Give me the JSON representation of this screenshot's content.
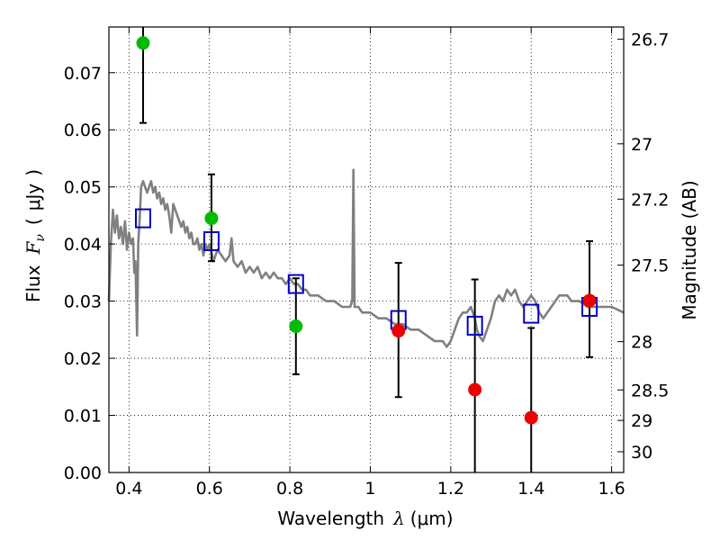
{
  "chart_data": {
    "type": "scatter",
    "title": "",
    "xlabel": {
      "text": "Wavelength",
      "symbol": "λ",
      "unit": "(μm)"
    },
    "ylabel": {
      "text": "Flux",
      "symbol": "F",
      "subscript": "ν",
      "unit_open": "(",
      "unit": "μJy",
      "unit_close": ")"
    },
    "y2label": "Magnitude (AB)",
    "xlim": [
      0.35,
      1.63
    ],
    "ylim": [
      0.0,
      0.078
    ],
    "grid": true,
    "x_ticks": [
      {
        "value": 0.4,
        "label": "0.4"
      },
      {
        "value": 0.6,
        "label": "0.6"
      },
      {
        "value": 0.8,
        "label": "0.8"
      },
      {
        "value": 1.0,
        "label": "1"
      },
      {
        "value": 1.2,
        "label": "1.2"
      },
      {
        "value": 1.4,
        "label": "1.4"
      },
      {
        "value": 1.6,
        "label": "1.6"
      }
    ],
    "y_ticks": [
      {
        "value": 0.0,
        "label": "0.00"
      },
      {
        "value": 0.01,
        "label": "0.01"
      },
      {
        "value": 0.02,
        "label": "0.02"
      },
      {
        "value": 0.03,
        "label": "0.03"
      },
      {
        "value": 0.04,
        "label": "0.04"
      },
      {
        "value": 0.05,
        "label": "0.05"
      },
      {
        "value": 0.06,
        "label": "0.06"
      },
      {
        "value": 0.07,
        "label": "0.07"
      }
    ],
    "y2_ticks": [
      {
        "value": 26.7,
        "label": "26.7"
      },
      {
        "value": 27.0,
        "label": "27"
      },
      {
        "value": 27.2,
        "label": "27.2"
      },
      {
        "value": 27.5,
        "label": "27.5"
      },
      {
        "value": 28.0,
        "label": "28"
      },
      {
        "value": 28.5,
        "label": "28.5"
      },
      {
        "value": 29.0,
        "label": "29"
      },
      {
        "value": 30.0,
        "label": "30"
      }
    ],
    "series": [
      {
        "kind": "line",
        "color": "#808080",
        "points": [
          [
            0.35,
            0.03
          ],
          [
            0.355,
            0.04
          ],
          [
            0.36,
            0.046
          ],
          [
            0.365,
            0.042
          ],
          [
            0.37,
            0.045
          ],
          [
            0.375,
            0.041
          ],
          [
            0.38,
            0.043
          ],
          [
            0.385,
            0.04
          ],
          [
            0.39,
            0.044
          ],
          [
            0.395,
            0.039
          ],
          [
            0.4,
            0.042
          ],
          [
            0.405,
            0.04
          ],
          [
            0.41,
            0.041
          ],
          [
            0.413,
            0.035
          ],
          [
            0.416,
            0.037
          ],
          [
            0.42,
            0.024
          ],
          [
            0.423,
            0.04
          ],
          [
            0.427,
            0.045
          ],
          [
            0.43,
            0.05
          ],
          [
            0.435,
            0.051
          ],
          [
            0.44,
            0.05
          ],
          [
            0.445,
            0.049
          ],
          [
            0.45,
            0.05
          ],
          [
            0.455,
            0.051
          ],
          [
            0.46,
            0.049
          ],
          [
            0.465,
            0.05
          ],
          [
            0.47,
            0.048
          ],
          [
            0.475,
            0.049
          ],
          [
            0.48,
            0.047
          ],
          [
            0.485,
            0.048
          ],
          [
            0.49,
            0.046
          ],
          [
            0.495,
            0.047
          ],
          [
            0.5,
            0.045
          ],
          [
            0.505,
            0.042
          ],
          [
            0.51,
            0.047
          ],
          [
            0.515,
            0.046
          ],
          [
            0.52,
            0.045
          ],
          [
            0.525,
            0.044
          ],
          [
            0.53,
            0.043
          ],
          [
            0.535,
            0.044
          ],
          [
            0.54,
            0.042
          ],
          [
            0.545,
            0.043
          ],
          [
            0.55,
            0.041
          ],
          [
            0.555,
            0.042
          ],
          [
            0.56,
            0.04
          ],
          [
            0.565,
            0.04
          ],
          [
            0.57,
            0.041
          ],
          [
            0.575,
            0.039
          ],
          [
            0.58,
            0.04
          ],
          [
            0.585,
            0.038
          ],
          [
            0.59,
            0.04
          ],
          [
            0.595,
            0.039
          ],
          [
            0.6,
            0.04
          ],
          [
            0.61,
            0.037
          ],
          [
            0.62,
            0.039
          ],
          [
            0.63,
            0.038
          ],
          [
            0.64,
            0.037
          ],
          [
            0.65,
            0.038
          ],
          [
            0.655,
            0.041
          ],
          [
            0.66,
            0.037
          ],
          [
            0.67,
            0.036
          ],
          [
            0.68,
            0.037
          ],
          [
            0.69,
            0.035
          ],
          [
            0.7,
            0.036
          ],
          [
            0.71,
            0.035
          ],
          [
            0.72,
            0.036
          ],
          [
            0.73,
            0.034
          ],
          [
            0.74,
            0.035
          ],
          [
            0.75,
            0.034
          ],
          [
            0.76,
            0.035
          ],
          [
            0.77,
            0.034
          ],
          [
            0.78,
            0.034
          ],
          [
            0.79,
            0.033
          ],
          [
            0.8,
            0.034
          ],
          [
            0.81,
            0.033
          ],
          [
            0.82,
            0.033
          ],
          [
            0.83,
            0.032
          ],
          [
            0.84,
            0.032
          ],
          [
            0.85,
            0.031
          ],
          [
            0.87,
            0.031
          ],
          [
            0.89,
            0.03
          ],
          [
            0.91,
            0.03
          ],
          [
            0.93,
            0.029
          ],
          [
            0.95,
            0.029
          ],
          [
            0.955,
            0.03
          ],
          [
            0.958,
            0.053
          ],
          [
            0.961,
            0.029
          ],
          [
            0.97,
            0.029
          ],
          [
            0.98,
            0.028
          ],
          [
            1.0,
            0.028
          ],
          [
            1.02,
            0.027
          ],
          [
            1.04,
            0.027
          ],
          [
            1.06,
            0.026
          ],
          [
            1.08,
            0.026
          ],
          [
            1.1,
            0.025
          ],
          [
            1.12,
            0.025
          ],
          [
            1.14,
            0.024
          ],
          [
            1.16,
            0.023
          ],
          [
            1.18,
            0.023
          ],
          [
            1.19,
            0.022
          ],
          [
            1.2,
            0.023
          ],
          [
            1.21,
            0.025
          ],
          [
            1.22,
            0.027
          ],
          [
            1.23,
            0.028
          ],
          [
            1.24,
            0.028
          ],
          [
            1.25,
            0.029
          ],
          [
            1.26,
            0.027
          ],
          [
            1.265,
            0.025
          ],
          [
            1.27,
            0.024
          ],
          [
            1.28,
            0.023
          ],
          [
            1.29,
            0.025
          ],
          [
            1.3,
            0.027
          ],
          [
            1.31,
            0.03
          ],
          [
            1.32,
            0.031
          ],
          [
            1.33,
            0.03
          ],
          [
            1.34,
            0.032
          ],
          [
            1.35,
            0.031
          ],
          [
            1.36,
            0.032
          ],
          [
            1.37,
            0.03
          ],
          [
            1.38,
            0.029
          ],
          [
            1.39,
            0.03
          ],
          [
            1.4,
            0.031
          ],
          [
            1.41,
            0.03
          ],
          [
            1.42,
            0.028
          ],
          [
            1.43,
            0.027
          ],
          [
            1.44,
            0.028
          ],
          [
            1.45,
            0.029
          ],
          [
            1.46,
            0.03
          ],
          [
            1.47,
            0.031
          ],
          [
            1.48,
            0.031
          ],
          [
            1.49,
            0.031
          ],
          [
            1.5,
            0.03
          ],
          [
            1.52,
            0.03
          ],
          [
            1.54,
            0.029
          ],
          [
            1.56,
            0.029
          ],
          [
            1.58,
            0.029
          ],
          [
            1.6,
            0.029
          ],
          [
            1.63,
            0.028
          ]
        ]
      },
      {
        "kind": "open-square",
        "color": "#0000cc",
        "points": [
          {
            "x": 0.435,
            "y": 0.0445
          },
          {
            "x": 0.605,
            "y": 0.0405
          },
          {
            "x": 0.815,
            "y": 0.033
          },
          {
            "x": 1.07,
            "y": 0.0267
          },
          {
            "x": 1.26,
            "y": 0.0257
          },
          {
            "x": 1.4,
            "y": 0.0278
          },
          {
            "x": 1.545,
            "y": 0.029
          }
        ]
      },
      {
        "kind": "dot",
        "color": "#00bb00",
        "points": [
          {
            "x": 0.435,
            "y": 0.0752,
            "ylo": 0.0612,
            "yhi": 0.079
          },
          {
            "x": 0.605,
            "y": 0.0445,
            "ylo": 0.037,
            "yhi": 0.0522
          },
          {
            "x": 0.815,
            "y": 0.0256,
            "ylo": 0.0172,
            "yhi": 0.034
          }
        ]
      },
      {
        "kind": "dot",
        "color": "#ee0000",
        "points": [
          {
            "x": 1.07,
            "y": 0.0248,
            "ylo": 0.0132,
            "yhi": 0.0367
          },
          {
            "x": 1.26,
            "y": 0.0145,
            "ylo": 0.0,
            "yhi": 0.0338
          },
          {
            "x": 1.4,
            "y": 0.0096,
            "ylo": 0.0,
            "yhi": 0.0253
          },
          {
            "x": 1.545,
            "y": 0.0301,
            "ylo": 0.0202,
            "yhi": 0.0405
          }
        ]
      }
    ]
  }
}
